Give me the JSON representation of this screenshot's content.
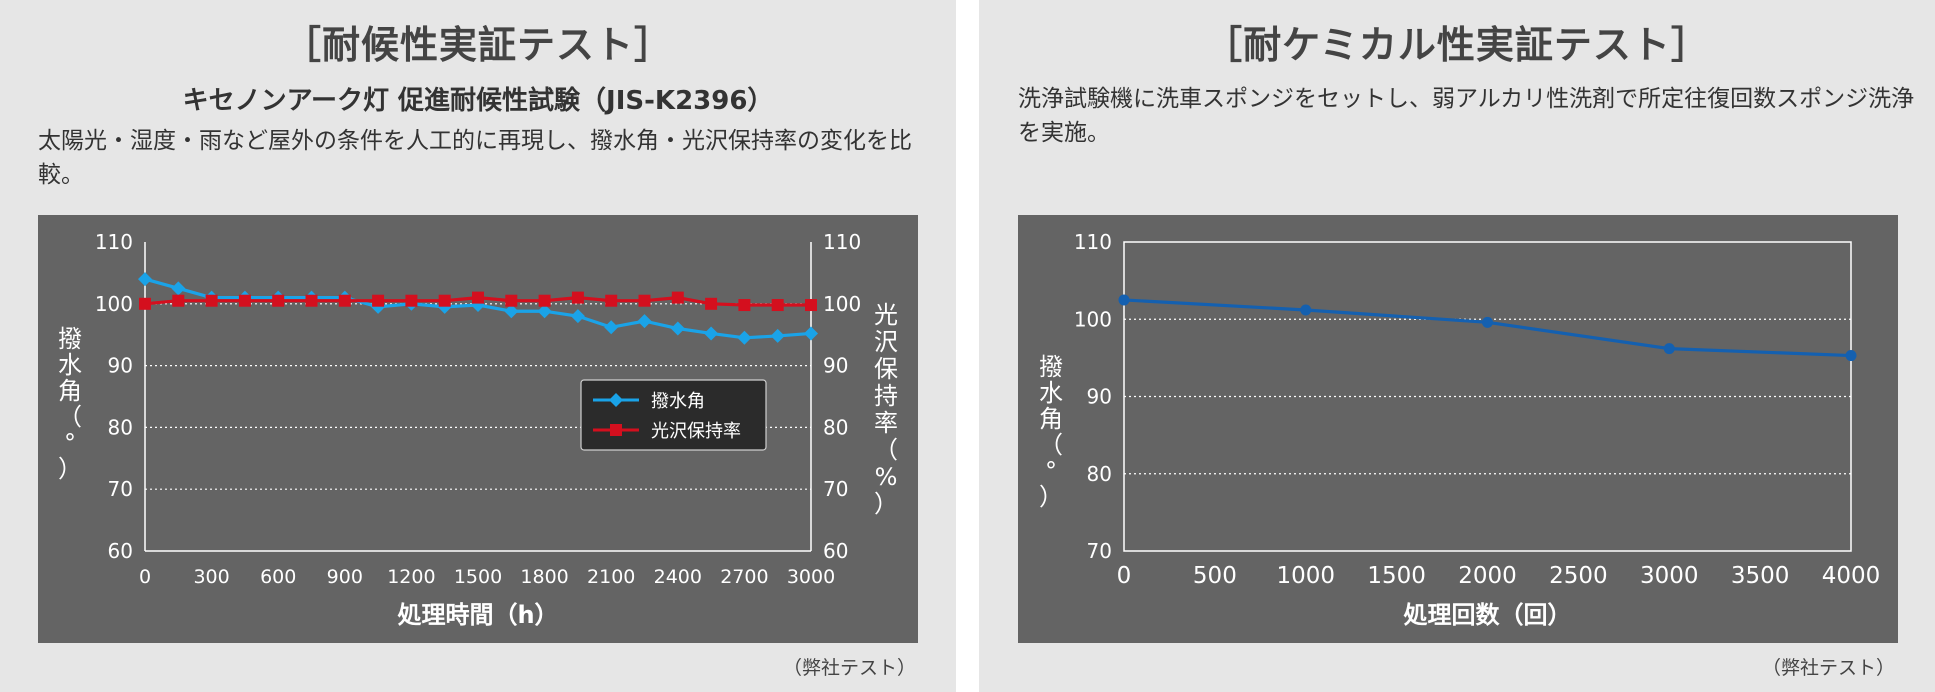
{
  "left": {
    "title": "［耐候性実証テスト］",
    "subtitle": "キセノンアーク灯 促進耐候性試験（JIS-K2396）",
    "description": "太陽光・湿度・雨など屋外の条件を人工的に再現し、撥水角・光沢保持率の変化を比較。",
    "note": "（弊社テスト）"
  },
  "right": {
    "title": "［耐ケミカル性実証テスト］",
    "description": "洗浄試験機に洗車スポンジをセットし、弱アルカリ性洗剤で所定往復回数スポンジ洗浄を実施。",
    "note": "（弊社テスト）"
  },
  "chart_data": [
    {
      "type": "line",
      "xlabel": "処理時間（h）",
      "ylabel": "撥水角（°）",
      "y2label": "光沢保持率（%）",
      "x": [
        0,
        150,
        300,
        450,
        600,
        750,
        900,
        1050,
        1200,
        1350,
        1500,
        1650,
        1800,
        1950,
        2100,
        2250,
        2400,
        2550,
        2700,
        2850,
        3000
      ],
      "xticks": [
        0,
        300,
        600,
        900,
        1200,
        1500,
        1800,
        2100,
        2400,
        2700,
        3000
      ],
      "xlim": [
        0,
        3000
      ],
      "ylim": [
        60,
        110
      ],
      "yticks": [
        60,
        70,
        80,
        90,
        100,
        110
      ],
      "y2lim": [
        60,
        110
      ],
      "y2ticks": [
        60,
        70,
        80,
        90,
        100,
        110
      ],
      "legend_position": "center-right",
      "series": [
        {
          "name": "撥水角",
          "color": "#1aa3e8",
          "marker": "diamond",
          "values": [
            104,
            102.5,
            101,
            101,
            101,
            101,
            101,
            99.5,
            100,
            99.5,
            99.8,
            98.8,
            98.8,
            98,
            96.2,
            97.2,
            96,
            95.2,
            94.5,
            94.8,
            95.2
          ]
        },
        {
          "name": "光沢保持率",
          "color": "#d40f1e",
          "marker": "square",
          "values": [
            100,
            100.5,
            100.5,
            100.5,
            100.5,
            100.5,
            100.5,
            100.5,
            100.5,
            100.5,
            101,
            100.5,
            100.5,
            101,
            100.5,
            100.5,
            101,
            100,
            99.8,
            99.8,
            99.8
          ]
        }
      ]
    },
    {
      "type": "line",
      "xlabel": "処理回数（回）",
      "ylabel": "撥水角（°）",
      "x": [
        0,
        1000,
        2000,
        3000,
        4000
      ],
      "xticks": [
        0,
        500,
        1000,
        1500,
        2000,
        2500,
        3000,
        3500,
        4000
      ],
      "xlim": [
        0,
        4000
      ],
      "ylim": [
        70,
        110
      ],
      "yticks": [
        70,
        80,
        90,
        100,
        110
      ],
      "series": [
        {
          "name": "撥水角",
          "color": "#1460b0",
          "marker": "circle",
          "values": [
            102.5,
            101.2,
            99.6,
            96.2,
            95.3
          ]
        }
      ]
    }
  ]
}
